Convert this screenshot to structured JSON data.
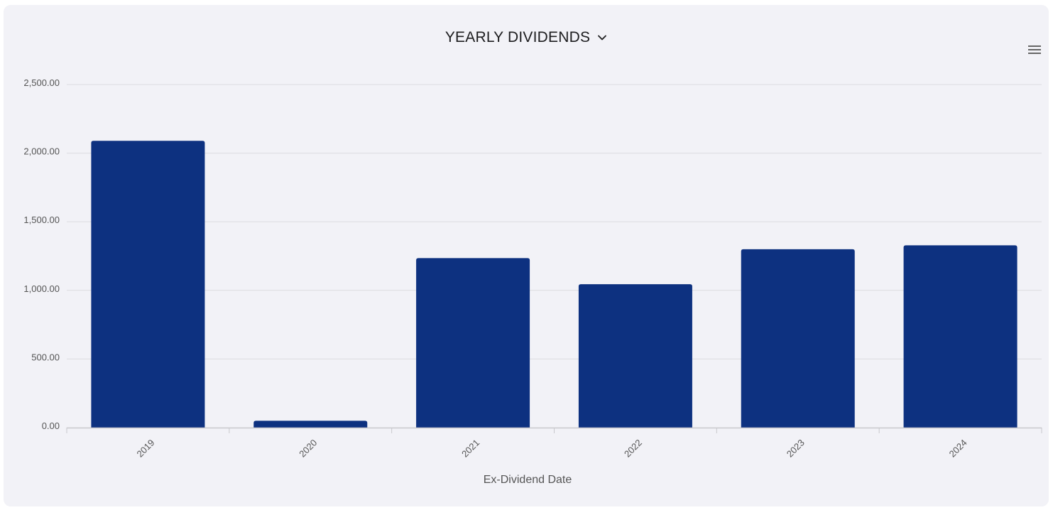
{
  "header": {
    "title": "YEARLY DIVIDENDS",
    "dropdown_icon": "chevron-down-icon",
    "menu_icon": "hamburger-menu-icon"
  },
  "colors": {
    "bar": "#0d3180",
    "grid": "#dcdce0",
    "axis": "#c8c8cc",
    "background": "#f2f2f7"
  },
  "chart_data": {
    "type": "bar",
    "title": "YEARLY DIVIDENDS",
    "xlabel": "Ex-Dividend Date",
    "ylabel": "",
    "categories": [
      "2019",
      "2020",
      "2021",
      "2022",
      "2023",
      "2024"
    ],
    "values": [
      2090,
      50,
      1235,
      1045,
      1300,
      1328
    ],
    "ylim": [
      0,
      2500
    ],
    "yticks": [
      0,
      500,
      1000,
      1500,
      2000,
      2500
    ],
    "ytick_labels": [
      "0.00",
      "500.00",
      "1,000.00",
      "1,500.00",
      "2,000.00",
      "2,500.00"
    ],
    "grid": true,
    "legend": "none"
  }
}
